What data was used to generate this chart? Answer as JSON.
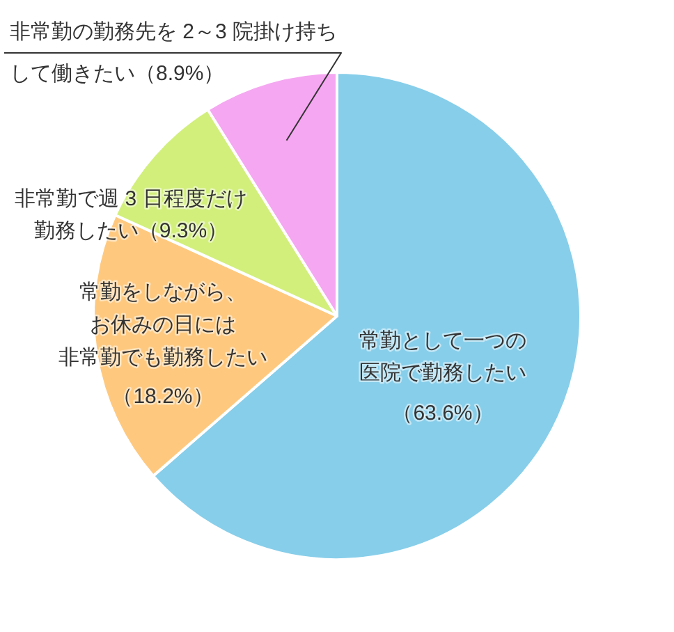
{
  "chart_data": {
    "type": "pie",
    "categories": [
      "常勤として一つの医院で勤務したい",
      "常勤をしながら、お休みの日には非常勤でも勤務したい",
      "非常勤で週 3 日程度だけ勤務したい",
      "非常勤の勤務先を 2～3 院掛け持ちして働きたい"
    ],
    "values": [
      63.6,
      18.2,
      9.3,
      8.9
    ],
    "colors": [
      "#87ceea",
      "#fec97f",
      "#d2ef7c",
      "#f5a7f1"
    ],
    "value_labels": [
      "（63.6%）",
      "（18.2%）",
      "（9.3%）",
      "（8.9%）"
    ]
  }
}
